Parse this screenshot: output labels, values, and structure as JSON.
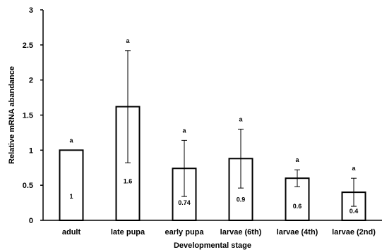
{
  "chart_data": {
    "type": "bar",
    "categories": [
      "adult",
      "late pupa",
      "early pupa",
      "larvae (6th)",
      "larvae (4th)",
      "larvae (2nd)"
    ],
    "series": [
      {
        "values": [
          1,
          1.62,
          0.74,
          0.88,
          0.6,
          0.4
        ],
        "error": [
          0,
          0.8,
          0.4,
          0.42,
          0.12,
          0.2
        ],
        "data_labels": [
          "1",
          "1.6",
          "0.74",
          "0.9",
          "0.6",
          "0.4"
        ],
        "significance": [
          "a",
          "a",
          "a",
          "a",
          "a",
          "a"
        ]
      }
    ],
    "xlabel": "Developmental stage",
    "ylabel": "Relative mRNA abandance",
    "ylim": [
      0,
      3
    ],
    "yticks": [
      {
        "value": 0,
        "label": "0"
      },
      {
        "value": 0.5,
        "label": "0.5"
      },
      {
        "value": 1,
        "label": "1"
      },
      {
        "value": 1.5,
        "label": "1.5"
      },
      {
        "value": 2,
        "label": "2"
      },
      {
        "value": 2.5,
        "label": "2.5"
      },
      {
        "value": 3,
        "label": "3"
      }
    ],
    "grid": false,
    "legend": "none",
    "colors": {
      "bar_fill": "#ffffff",
      "bar_stroke": "#000000",
      "axis": "#000000"
    }
  }
}
